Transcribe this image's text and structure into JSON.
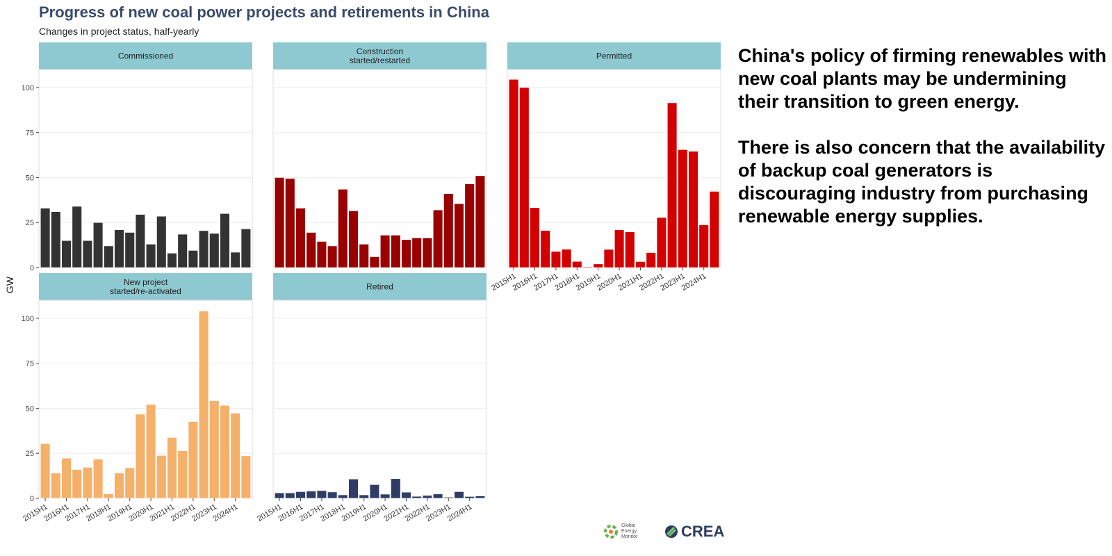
{
  "title": "Progress of new coal power projects and retirements in China",
  "subtitle": "Changes in project status, half-yearly",
  "note": [
    "China's policy of firming renewables with new coal plants may be undermining their transition to green energy.",
    "There is also concern that the availability of backup coal generators is discouraging industry from purchasing renewable energy supplies."
  ],
  "logos": {
    "gem": "Global Energy Monitor",
    "crea": "CREA"
  },
  "colors": {
    "strip": "#8ec9d1",
    "grid": "#ebebeb"
  },
  "chart_data": {
    "type": "bar",
    "ylabel": "GW",
    "ylim": [
      0,
      110
    ],
    "yticks": [
      0,
      25,
      50,
      75,
      100
    ],
    "grid": true,
    "categories": [
      "2015H1",
      "2015H2",
      "2016H1",
      "2016H2",
      "2017H1",
      "2017H2",
      "2018H1",
      "2018H2",
      "2019H1",
      "2019H2",
      "2020H1",
      "2020H2",
      "2021H1",
      "2021H2",
      "2022H1",
      "2022H2",
      "2023H1",
      "2023H2",
      "2024H1",
      "2024H2"
    ],
    "tick_labels": [
      "2015H1",
      "2016H1",
      "2017H1",
      "2018H1",
      "2019H1",
      "2020H1",
      "2021H1",
      "2022H1",
      "2023H1",
      "2024H1"
    ],
    "facets": [
      {
        "name": "Commissioned",
        "color": "#333333",
        "values": [
          33,
          31,
          15,
          34,
          15,
          25,
          12,
          21,
          19.5,
          29.5,
          13,
          28.5,
          8,
          18.5,
          9.5,
          20.5,
          19,
          30,
          8.5,
          21.5
        ]
      },
      {
        "name": "Construction\nstarted/restarted",
        "color": "#990000",
        "values": [
          50,
          49.5,
          33,
          19.5,
          14.5,
          12,
          43.5,
          31.5,
          13,
          6,
          18,
          18,
          15.5,
          16.5,
          16.5,
          32,
          41,
          35.5,
          46.5,
          51
        ]
      },
      {
        "name": "Permitted",
        "color": "#d40000",
        "values": [
          104.5,
          100,
          33.3,
          20.6,
          9,
          10.2,
          3.4,
          0.4,
          2,
          10.1,
          21,
          19.8,
          3.3,
          8.3,
          27.8,
          91.5,
          65.5,
          64.6,
          23.7,
          42.3
        ]
      },
      {
        "name": "New project\nstarted/re-activated",
        "color": "#f5b06a",
        "values": [
          30.4,
          14,
          22.3,
          16,
          17.2,
          21.7,
          2.5,
          14,
          16.9,
          46.7,
          52.1,
          23.8,
          33.8,
          26.4,
          42.6,
          104,
          54.2,
          51.6,
          47.3,
          23.6
        ]
      },
      {
        "name": "Retired",
        "color": "#2f3d66",
        "values": [
          3,
          3,
          3.7,
          4,
          4.3,
          3.5,
          1.9,
          10.7,
          1.9,
          7.6,
          2.3,
          10.9,
          3.4,
          1.1,
          1.6,
          2.4,
          0.6,
          3.7,
          1,
          1.3
        ]
      }
    ]
  }
}
